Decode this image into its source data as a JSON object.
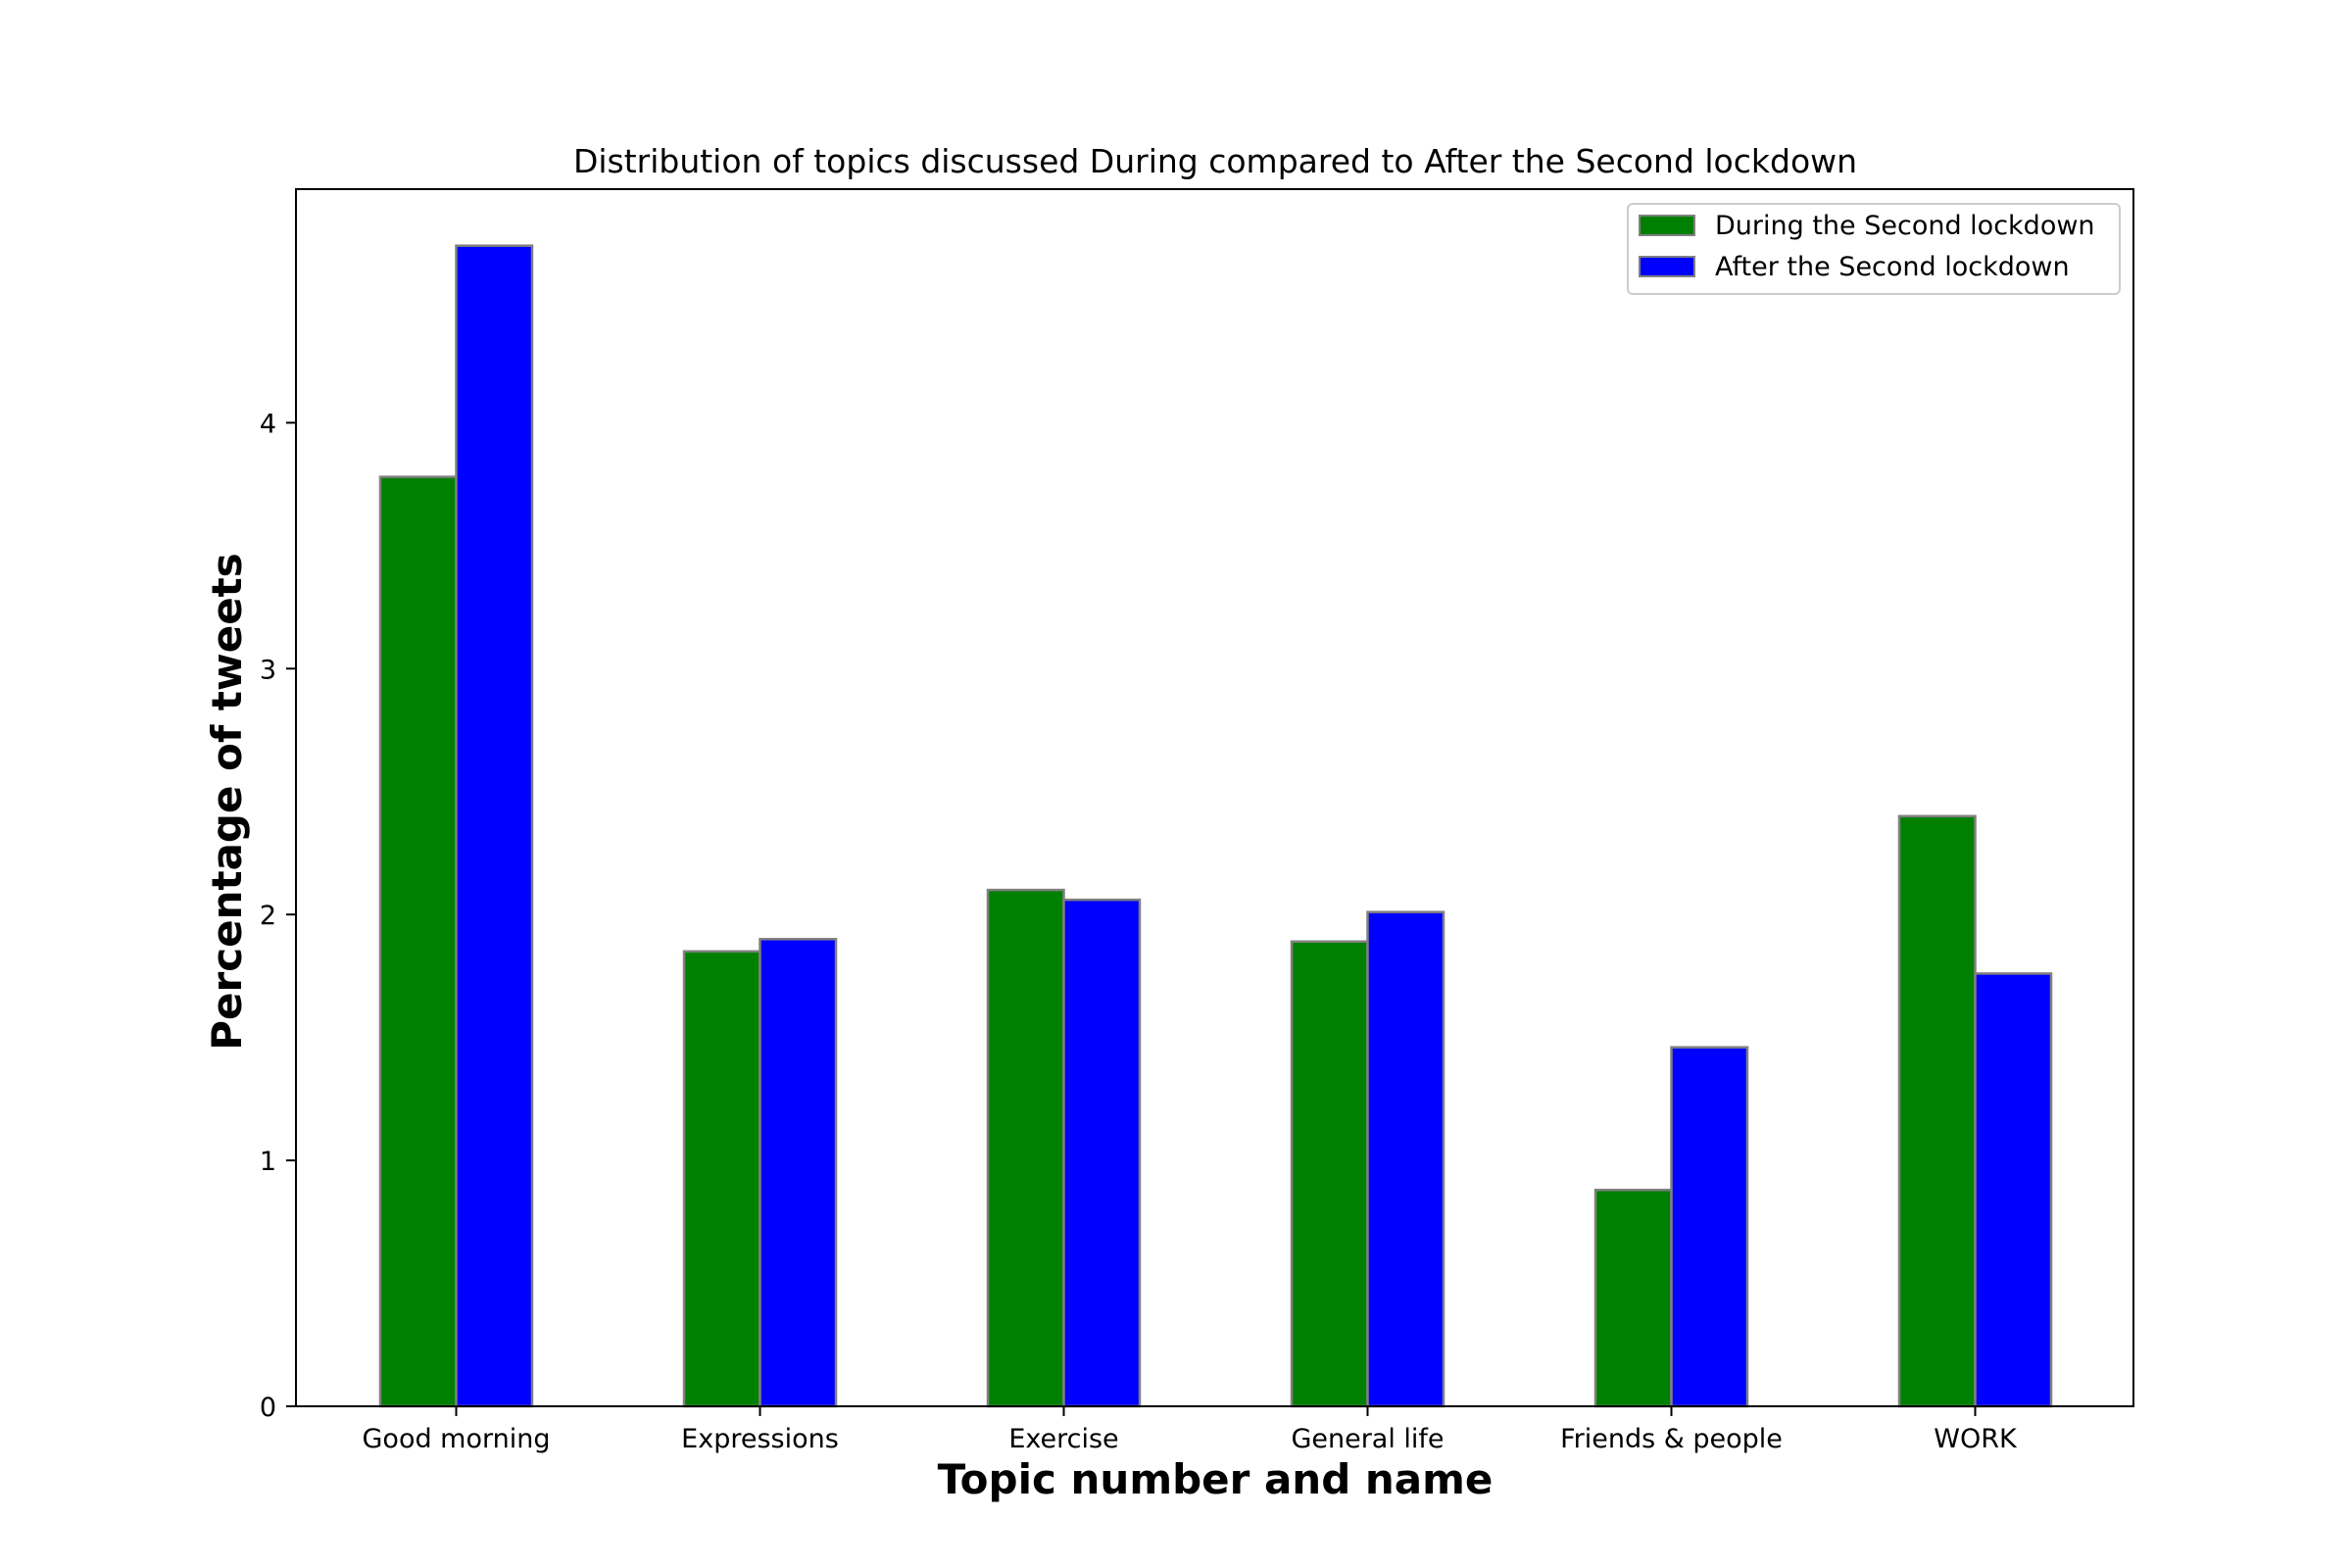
{
  "chart_data": {
    "type": "bar",
    "title": "Distribution of topics discussed During compared to After the Second lockdown",
    "xlabel": "Topic number and name",
    "ylabel": "Percentage of tweets",
    "categories": [
      "Good morning",
      "Expressions",
      "Exercise",
      "General life",
      "Friends & people",
      "WORK"
    ],
    "series": [
      {
        "name": "During the Second lockdown",
        "color": "#008000",
        "values": [
          3.78,
          1.85,
          2.1,
          1.89,
          0.88,
          2.4
        ]
      },
      {
        "name": "After the Second lockdown",
        "color": "#0000ff",
        "values": [
          4.72,
          1.9,
          2.06,
          2.01,
          1.46,
          1.76
        ]
      }
    ],
    "ylim": [
      0,
      4.95
    ],
    "yticks": [
      0,
      1,
      2,
      3,
      4
    ],
    "grid": false,
    "legend_position": "top-right",
    "bar_edge_color": "#808080"
  }
}
